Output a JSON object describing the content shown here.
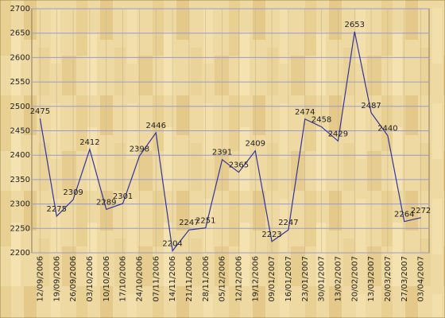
{
  "chart_data": {
    "type": "line",
    "categories": [
      "12/09/2006",
      "19/09/2006",
      "26/09/2006",
      "03/10/2006",
      "10/10/2006",
      "17/10/2006",
      "24/10/2006",
      "07/11/2006",
      "14/11/2006",
      "21/11/2006",
      "28/11/2006",
      "05/12/2006",
      "12/12/2006",
      "19/12/2006",
      "09/01/2007",
      "16/01/2007",
      "23/01/2007",
      "30/01/2007",
      "13/02/2007",
      "20/02/2007",
      "13/03/2007",
      "20/03/2007",
      "27/03/2007",
      "03/04/2007"
    ],
    "values": [
      2475,
      2275,
      2309,
      2412,
      2289,
      2301,
      2398,
      2446,
      2204,
      2247,
      2251,
      2391,
      2365,
      2409,
      2223,
      2247,
      2474,
      2458,
      2429,
      2653,
      2487,
      2440,
      2264,
      2272
    ],
    "color": "#333399",
    "ylim": [
      2200,
      2700
    ],
    "yticks": [
      2200,
      2250,
      2300,
      2350,
      2400,
      2450,
      2500,
      2550,
      2600,
      2650,
      2700
    ],
    "grid": true
  }
}
